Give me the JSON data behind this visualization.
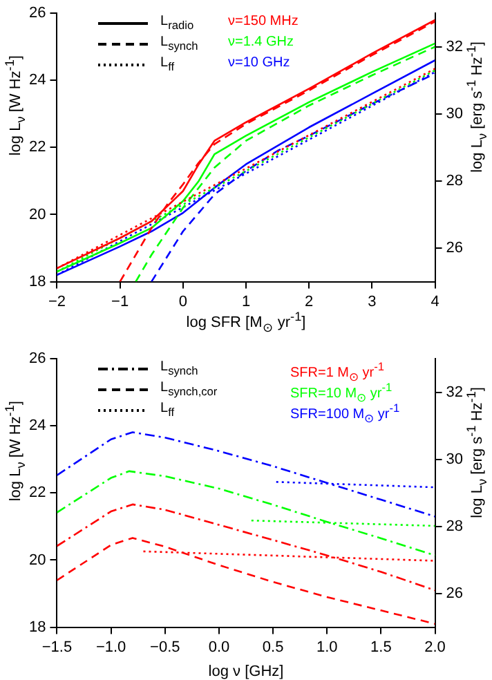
{
  "chart_data": [
    {
      "type": "line",
      "xlabel": "log SFR [M$_{⊙}$ yr$^{-1}$]",
      "ylabel": "log L$_{ν}$ [W Hz$^{-1}$]",
      "y2label": "log L$_{ν}$ [erg s$^{-1}$ Hz$^{-1}$]",
      "xlim": [
        -2,
        4
      ],
      "xticks": [
        {
          "value": -2,
          "label": "−2"
        },
        {
          "value": -1,
          "label": "−1"
        },
        0,
        1,
        2,
        3,
        4
      ],
      "ylim": [
        18,
        26
      ],
      "yticks": [
        18,
        20,
        22,
        24,
        26
      ],
      "y2lim": [
        25,
        33
      ],
      "y2ticks": [
        26,
        28,
        30,
        32
      ],
      "annotations": [
        "L$_{radio}$",
        "L$_{synch}$",
        "L$_{ff}$",
        "ν=150 MHz",
        "ν=1.4 GHz",
        "ν=10 GHz"
      ],
      "series": [
        {
          "color": "#ff0000",
          "line_style": "solid",
          "x": [
            -2,
            -1,
            -0.5,
            0,
            0.25,
            0.5,
            1,
            2,
            3,
            4
          ],
          "values": [
            18.4,
            19.3,
            19.8,
            20.7,
            21.5,
            22.2,
            22.75,
            23.75,
            24.8,
            25.8
          ]
        },
        {
          "color": "#ff0000",
          "line_style": "dashed",
          "x": [
            -1,
            -0.5,
            -0.25,
            0,
            0.25,
            0.5,
            1,
            2,
            3,
            4
          ],
          "values": [
            18,
            19.6,
            20.3,
            20.9,
            21.55,
            22.1,
            22.7,
            23.7,
            24.75,
            25.75
          ]
        },
        {
          "color": "#ff0000",
          "line_style": "dotted",
          "x": [
            -2,
            4
          ],
          "values": [
            18.4,
            24.35
          ]
        },
        {
          "color": "#00ff00",
          "line_style": "solid",
          "x": [
            -2,
            -1,
            -0.5,
            0,
            0.25,
            0.5,
            1,
            2,
            3,
            4
          ],
          "values": [
            18.3,
            19.15,
            19.6,
            20.4,
            21.0,
            21.8,
            22.35,
            23.35,
            24.25,
            25.1
          ]
        },
        {
          "color": "#00ff00",
          "line_style": "dashed",
          "x": [
            -0.75,
            -0.5,
            0,
            0.5,
            1,
            2,
            3,
            4
          ],
          "values": [
            18,
            18.8,
            20.2,
            21.4,
            22.2,
            23.25,
            24.15,
            25.0
          ]
        },
        {
          "color": "#00ff00",
          "line_style": "dotted",
          "x": [
            -2,
            4
          ],
          "values": [
            18.3,
            24.3
          ]
        },
        {
          "color": "#0000ff",
          "line_style": "solid",
          "x": [
            -2,
            -1,
            -0.5,
            0,
            0.5,
            1,
            2,
            3,
            4
          ],
          "values": [
            18.2,
            19.05,
            19.5,
            20.05,
            20.8,
            21.5,
            22.6,
            23.6,
            24.6
          ]
        },
        {
          "color": "#0000ff",
          "line_style": "dashed",
          "x": [
            -0.5,
            0,
            0.5,
            1,
            1.5,
            2,
            3,
            4
          ],
          "values": [
            18,
            19.5,
            20.6,
            21.3,
            21.9,
            22.35,
            23.3,
            24.2
          ]
        },
        {
          "color": "#0000ff",
          "line_style": "dotted",
          "x": [
            -2,
            4
          ],
          "values": [
            18.2,
            24.25
          ]
        }
      ]
    },
    {
      "type": "line",
      "xlabel": "log ν [GHz]",
      "ylabel": "log L$_{ν}$ [W Hz$^{-1}$]",
      "y2label": "log L$_{ν}$ [erg s$^{-1}$ Hz$^{-1}$]",
      "xlim": [
        -1.5,
        2
      ],
      "xticks": [
        {
          "value": -1.5,
          "label": "−1.5"
        },
        {
          "value": -1,
          "label": "−1.0"
        },
        {
          "value": -0.5,
          "label": "−0.5"
        },
        {
          "value": 0,
          "label": "0.0"
        },
        0.5,
        {
          "value": 1,
          "label": "1.0"
        },
        1.5,
        {
          "value": 2,
          "label": "2.0"
        }
      ],
      "ylim": [
        18,
        26
      ],
      "yticks": [
        18,
        20,
        22,
        24,
        26
      ],
      "y2lim": [
        25,
        33
      ],
      "y2ticks": [
        26,
        28,
        30,
        32
      ],
      "annotations": [
        "L$_{synch}$",
        "L$_{synch,cor}$",
        "L$_{ff}$",
        "SFR=1 M$_{⊙}$ yr$^{-1}$",
        "SFR=10 M$_{⊙}$ yr$^{-1}$",
        "SFR=100 M$_{⊙}$ yr$^{-1}$"
      ],
      "series": [
        {
          "color": "#ff0000",
          "line_style": "dashdot",
          "x": [
            -1.5,
            -1.0,
            -0.8,
            -0.5,
            0,
            0.5,
            1,
            1.5,
            2
          ],
          "values": [
            20.42,
            21.45,
            21.66,
            21.5,
            21.05,
            20.6,
            20.14,
            19.65,
            19.1
          ]
        },
        {
          "color": "#ff0000",
          "line_style": "dashed",
          "x": [
            -1.5,
            -1.0,
            -0.8,
            -0.5,
            0,
            0.5,
            1,
            1.5,
            2
          ],
          "values": [
            19.4,
            20.45,
            20.66,
            20.4,
            19.85,
            19.35,
            18.9,
            18.5,
            18.1
          ]
        },
        {
          "color": "#ff0000",
          "line_style": "dotted",
          "x": [
            -0.7,
            2
          ],
          "values": [
            20.26,
            19.98
          ]
        },
        {
          "color": "#00ff00",
          "line_style": "dashdot",
          "x": [
            -1.5,
            -1.0,
            -0.83,
            -0.5,
            0,
            0.5,
            1,
            1.5,
            2
          ],
          "values": [
            21.42,
            22.45,
            22.65,
            22.5,
            22.13,
            21.65,
            21.14,
            20.65,
            20.14
          ]
        },
        {
          "color": "#00ff00",
          "line_style": "dotted",
          "x": [
            0.3,
            2
          ],
          "values": [
            21.18,
            21.02
          ]
        },
        {
          "color": "#0000ff",
          "line_style": "dashdot",
          "x": [
            -1.5,
            -1.0,
            -0.8,
            -0.5,
            0,
            0.5,
            1,
            1.5,
            2
          ],
          "values": [
            22.53,
            23.6,
            23.81,
            23.65,
            23.25,
            22.8,
            22.3,
            21.8,
            21.3
          ]
        },
        {
          "color": "#0000ff",
          "line_style": "dotted",
          "x": [
            0.53,
            2
          ],
          "values": [
            22.33,
            22.17
          ]
        }
      ]
    }
  ]
}
